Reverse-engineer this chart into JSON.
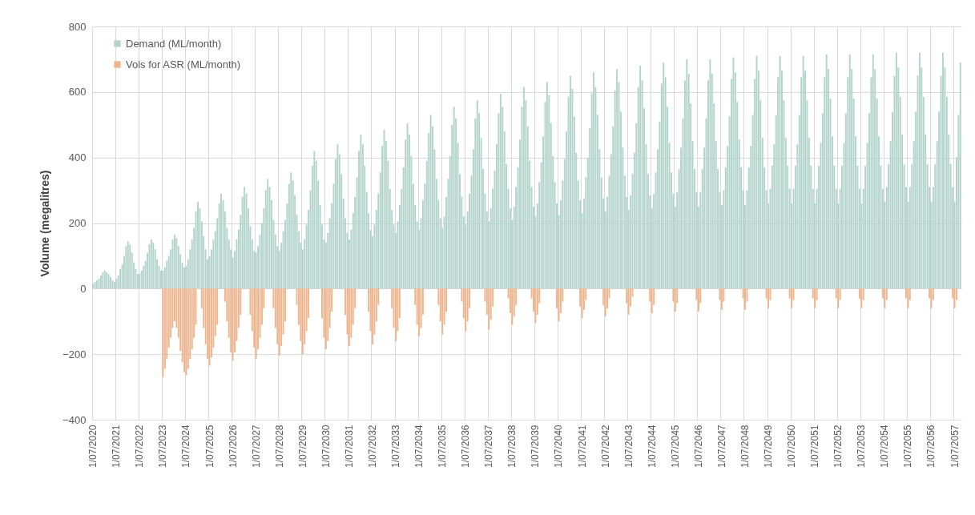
{
  "chart_data": {
    "type": "bar",
    "ylabel": "Volume (megalitres)",
    "categories": [
      "1/07/2020",
      null,
      null,
      null,
      null,
      null,
      null,
      null,
      null,
      null,
      null,
      null,
      "1/07/2021",
      null,
      null,
      null,
      null,
      null,
      null,
      null,
      null,
      null,
      null,
      null,
      "1/07/2022",
      null,
      null,
      null,
      null,
      null,
      null,
      null,
      null,
      null,
      null,
      null,
      "1/07/2023",
      null,
      null,
      null,
      null,
      null,
      null,
      null,
      null,
      null,
      null,
      null,
      "1/07/2024",
      null,
      null,
      null,
      null,
      null,
      null,
      null,
      null,
      null,
      null,
      null,
      "1/07/2025",
      null,
      null,
      null,
      null,
      null,
      null,
      null,
      null,
      null,
      null,
      null,
      "1/07/2026",
      null,
      null,
      null,
      null,
      null,
      null,
      null,
      null,
      null,
      null,
      null,
      "1/07/2027",
      null,
      null,
      null,
      null,
      null,
      null,
      null,
      null,
      null,
      null,
      null,
      "1/07/2028",
      null,
      null,
      null,
      null,
      null,
      null,
      null,
      null,
      null,
      null,
      null,
      "1/07/2029",
      null,
      null,
      null,
      null,
      null,
      null,
      null,
      null,
      null,
      null,
      null,
      "1/07/2030",
      null,
      null,
      null,
      null,
      null,
      null,
      null,
      null,
      null,
      null,
      null,
      "1/07/2031",
      null,
      null,
      null,
      null,
      null,
      null,
      null,
      null,
      null,
      null,
      null,
      "1/07/2032",
      null,
      null,
      null,
      null,
      null,
      null,
      null,
      null,
      null,
      null,
      null,
      "1/07/2033",
      null,
      null,
      null,
      null,
      null,
      null,
      null,
      null,
      null,
      null,
      null,
      "1/07/2034",
      null,
      null,
      null,
      null,
      null,
      null,
      null,
      null,
      null,
      null,
      null,
      "1/07/2035",
      null,
      null,
      null,
      null,
      null,
      null,
      null,
      null,
      null,
      null,
      null,
      "1/07/2036",
      null,
      null,
      null,
      null,
      null,
      null,
      null,
      null,
      null,
      null,
      null,
      "1/07/2037",
      null,
      null,
      null,
      null,
      null,
      null,
      null,
      null,
      null,
      null,
      null,
      "1/07/2038",
      null,
      null,
      null,
      null,
      null,
      null,
      null,
      null,
      null,
      null,
      null,
      "1/07/2039",
      null,
      null,
      null,
      null,
      null,
      null,
      null,
      null,
      null,
      null,
      null,
      "1/07/2040",
      null,
      null,
      null,
      null,
      null,
      null,
      null,
      null,
      null,
      null,
      null,
      "1/07/2041",
      null,
      null,
      null,
      null,
      null,
      null,
      null,
      null,
      null,
      null,
      null,
      "1/07/2042",
      null,
      null,
      null,
      null,
      null,
      null,
      null,
      null,
      null,
      null,
      null,
      "1/07/2043",
      null,
      null,
      null,
      null,
      null,
      null,
      null,
      null,
      null,
      null,
      null,
      "1/07/2044",
      null,
      null,
      null,
      null,
      null,
      null,
      null,
      null,
      null,
      null,
      null,
      "1/07/2045",
      null,
      null,
      null,
      null,
      null,
      null,
      null,
      null,
      null,
      null,
      null,
      "1/07/2046",
      null,
      null,
      null,
      null,
      null,
      null,
      null,
      null,
      null,
      null,
      null,
      "1/07/2047",
      null,
      null,
      null,
      null,
      null,
      null,
      null,
      null,
      null,
      null,
      null,
      "1/07/2048",
      null,
      null,
      null,
      null,
      null,
      null,
      null,
      null,
      null,
      null,
      null,
      "1/07/2049",
      null,
      null,
      null,
      null,
      null,
      null,
      null,
      null,
      null,
      null,
      null,
      "1/07/2050",
      null,
      null,
      null,
      null,
      null,
      null,
      null,
      null,
      null,
      null,
      null,
      "1/07/2051",
      null,
      null,
      null,
      null,
      null,
      null,
      null,
      null,
      null,
      null,
      null,
      "1/07/2052",
      null,
      null,
      null,
      null,
      null,
      null,
      null,
      null,
      null,
      null,
      null,
      "1/07/2053",
      null,
      null,
      null,
      null,
      null,
      null,
      null,
      null,
      null,
      null,
      null,
      "1/07/2054",
      null,
      null,
      null,
      null,
      null,
      null,
      null,
      null,
      null,
      null,
      null,
      "1/07/2055",
      null,
      null,
      null,
      null,
      null,
      null,
      null,
      null,
      null,
      null,
      null,
      "1/07/2056",
      null,
      null,
      null,
      null,
      null,
      null,
      null,
      null,
      null,
      null,
      null,
      "1/07/2057",
      null,
      null,
      null
    ],
    "series": [
      {
        "name": "Demand (ML/month)",
        "color": "#b3d4cb",
        "values": [
          15,
          20,
          25,
          30,
          40,
          50,
          55,
          50,
          45,
          35,
          25,
          20,
          30,
          40,
          60,
          75,
          100,
          130,
          145,
          135,
          110,
          80,
          60,
          45,
          45,
          55,
          70,
          85,
          110,
          135,
          150,
          140,
          120,
          90,
          70,
          55,
          55,
          65,
          85,
          100,
          120,
          150,
          165,
          155,
          130,
          105,
          80,
          65,
          70,
          90,
          120,
          150,
          185,
          235,
          265,
          245,
          205,
          160,
          120,
          90,
          100,
          120,
          150,
          175,
          215,
          260,
          290,
          270,
          235,
          185,
          150,
          120,
          95,
          115,
          150,
          180,
          225,
          280,
          310,
          290,
          245,
          190,
          150,
          115,
          110,
          130,
          165,
          200,
          245,
          300,
          335,
          310,
          270,
          210,
          165,
          130,
          115,
          140,
          175,
          210,
          260,
          320,
          355,
          330,
          285,
          225,
          175,
          140,
          120,
          150,
          195,
          240,
          300,
          375,
          420,
          390,
          330,
          255,
          195,
          150,
          140,
          170,
          215,
          260,
          320,
          395,
          440,
          410,
          350,
          275,
          215,
          170,
          150,
          180,
          230,
          280,
          340,
          420,
          470,
          440,
          375,
          295,
          230,
          180,
          160,
          195,
          240,
          290,
          355,
          435,
          485,
          450,
          390,
          305,
          240,
          195,
          170,
          205,
          255,
          305,
          370,
          455,
          505,
          470,
          405,
          320,
          255,
          205,
          180,
          215,
          270,
          320,
          390,
          475,
          530,
          495,
          425,
          335,
          270,
          215,
          185,
          220,
          280,
          335,
          405,
          500,
          555,
          520,
          445,
          350,
          280,
          220,
          195,
          235,
          290,
          345,
          425,
          520,
          575,
          535,
          460,
          365,
          290,
          235,
          205,
          245,
          305,
          360,
          440,
          535,
          595,
          555,
          480,
          380,
          305,
          245,
          210,
          250,
          310,
          370,
          455,
          555,
          615,
          575,
          495,
          390,
          310,
          250,
          220,
          260,
          325,
          385,
          465,
          570,
          630,
          590,
          505,
          405,
          325,
          260,
          225,
          270,
          330,
          395,
          480,
          585,
          650,
          610,
          525,
          415,
          330,
          270,
          230,
          275,
          340,
          400,
          490,
          595,
          660,
          615,
          530,
          425,
          340,
          275,
          235,
          280,
          345,
          410,
          495,
          605,
          670,
          630,
          540,
          430,
          345,
          280,
          240,
          285,
          350,
          415,
          505,
          615,
          680,
          635,
          550,
          440,
          350,
          285,
          245,
          290,
          355,
          425,
          510,
          625,
          690,
          645,
          555,
          445,
          355,
          290,
          250,
          295,
          365,
          430,
          520,
          635,
          700,
          655,
          565,
          450,
          365,
          295,
          250,
          295,
          365,
          430,
          520,
          635,
          700,
          655,
          565,
          450,
          365,
          295,
          255,
          300,
          370,
          435,
          525,
          640,
          705,
          660,
          570,
          455,
          370,
          300,
          255,
          300,
          370,
          435,
          530,
          640,
          710,
          665,
          575,
          460,
          370,
          300,
          260,
          305,
          375,
          440,
          530,
          645,
          710,
          665,
          575,
          460,
          375,
          305,
          260,
          305,
          375,
          440,
          530,
          645,
          710,
          665,
          575,
          460,
          375,
          305,
          260,
          305,
          375,
          445,
          535,
          645,
          715,
          670,
          580,
          465,
          375,
          305,
          260,
          305,
          375,
          445,
          535,
          645,
          715,
          670,
          580,
          465,
          375,
          305,
          260,
          305,
          375,
          445,
          535,
          645,
          715,
          670,
          580,
          465,
          375,
          305,
          265,
          310,
          380,
          450,
          540,
          650,
          720,
          675,
          585,
          470,
          380,
          310,
          265,
          310,
          380,
          450,
          540,
          650,
          720,
          675,
          585,
          470,
          380,
          310,
          265,
          310,
          380,
          450,
          540,
          650,
          720,
          675,
          585,
          470,
          380,
          310,
          265,
          400,
          530,
          690
        ]
      },
      {
        "name": "Vols for ASR (ML/month)",
        "color": "#f0b48c",
        "values": [
          null,
          null,
          null,
          null,
          null,
          null,
          null,
          null,
          null,
          null,
          null,
          null,
          null,
          null,
          null,
          null,
          null,
          null,
          null,
          null,
          null,
          null,
          null,
          null,
          null,
          null,
          null,
          null,
          null,
          null,
          null,
          null,
          null,
          null,
          null,
          null,
          -270,
          -245,
          -215,
          -180,
          -150,
          -120,
          -100,
          -120,
          -150,
          -190,
          -225,
          -255,
          -265,
          -245,
          -215,
          -185,
          -150,
          -110,
          null,
          null,
          -60,
          -120,
          -170,
          -215,
          -235,
          -210,
          -180,
          -145,
          -110,
          null,
          null,
          null,
          -40,
          -100,
          -150,
          -195,
          -220,
          -195,
          -160,
          -120,
          -80,
          null,
          null,
          null,
          null,
          -80,
          -130,
          -180,
          -215,
          -185,
          -150,
          -110,
          -60,
          null,
          null,
          null,
          null,
          -60,
          -120,
          -170,
          -205,
          -175,
          -140,
          -100,
          null,
          null,
          null,
          null,
          null,
          -50,
          -110,
          -160,
          -200,
          -170,
          -130,
          -90,
          null,
          null,
          null,
          null,
          null,
          null,
          -90,
          -150,
          -185,
          -160,
          -120,
          -70,
          null,
          null,
          null,
          null,
          null,
          null,
          -80,
          -140,
          -175,
          -150,
          -110,
          -60,
          null,
          null,
          null,
          null,
          null,
          null,
          -70,
          -130,
          -170,
          -140,
          -100,
          -50,
          null,
          null,
          null,
          null,
          null,
          null,
          -60,
          -120,
          -160,
          -130,
          -90,
          null,
          null,
          null,
          null,
          null,
          null,
          null,
          -50,
          -110,
          -145,
          -120,
          -80,
          null,
          null,
          null,
          null,
          null,
          null,
          null,
          -50,
          -100,
          -140,
          -110,
          -70,
          null,
          null,
          null,
          null,
          null,
          null,
          null,
          -40,
          -90,
          -130,
          -100,
          -60,
          null,
          null,
          null,
          null,
          null,
          null,
          null,
          -40,
          -80,
          -125,
          -95,
          -55,
          null,
          null,
          null,
          null,
          null,
          null,
          null,
          -30,
          -75,
          -110,
          -85,
          -50,
          null,
          null,
          null,
          null,
          null,
          null,
          null,
          -30,
          -70,
          -105,
          -80,
          -45,
          null,
          null,
          null,
          null,
          null,
          null,
          null,
          null,
          -60,
          -100,
          -75,
          -40,
          null,
          null,
          null,
          null,
          null,
          null,
          null,
          null,
          -55,
          -90,
          -65,
          -35,
          null,
          null,
          null,
          null,
          null,
          null,
          null,
          null,
          -50,
          -85,
          -60,
          -30,
          null,
          null,
          null,
          null,
          null,
          null,
          null,
          null,
          -45,
          -80,
          -55,
          -25,
          null,
          null,
          null,
          null,
          null,
          null,
          null,
          null,
          -40,
          -75,
          -50,
          null,
          null,
          null,
          null,
          null,
          null,
          null,
          null,
          null,
          -40,
          -70,
          -45,
          null,
          null,
          null,
          null,
          null,
          null,
          null,
          null,
          null,
          -35,
          -70,
          -45,
          null,
          null,
          null,
          null,
          null,
          null,
          null,
          null,
          null,
          -35,
          -65,
          -40,
          null,
          null,
          null,
          null,
          null,
          null,
          null,
          null,
          null,
          -30,
          -65,
          -40,
          null,
          null,
          null,
          null,
          null,
          null,
          null,
          null,
          null,
          -30,
          -60,
          -35,
          null,
          null,
          null,
          null,
          null,
          null,
          null,
          null,
          null,
          -30,
          -60,
          -35,
          null,
          null,
          null,
          null,
          null,
          null,
          null,
          null,
          null,
          -30,
          -60,
          -35,
          null,
          null,
          null,
          null,
          null,
          null,
          null,
          null,
          null,
          -30,
          -60,
          -35,
          null,
          null,
          null,
          null,
          null,
          null,
          null,
          null,
          null,
          -30,
          -60,
          -35,
          null,
          null,
          null,
          null,
          null,
          null,
          null,
          null,
          null,
          -30,
          -60,
          -35,
          null,
          null,
          null,
          null,
          null,
          null,
          null,
          null,
          null,
          -30,
          -60,
          -35,
          null,
          null,
          null,
          null,
          null,
          null,
          null,
          null,
          null,
          -30,
          -60,
          -35,
          null,
          null,
          null,
          null,
          null,
          null,
          null,
          null,
          null,
          -30,
          -60,
          -35,
          null,
          null
        ]
      }
    ],
    "ylim": [
      -400,
      800
    ],
    "yticks": [
      -400,
      -200,
      0,
      200,
      400,
      600,
      800
    ],
    "grid": true,
    "legend": "top left"
  }
}
